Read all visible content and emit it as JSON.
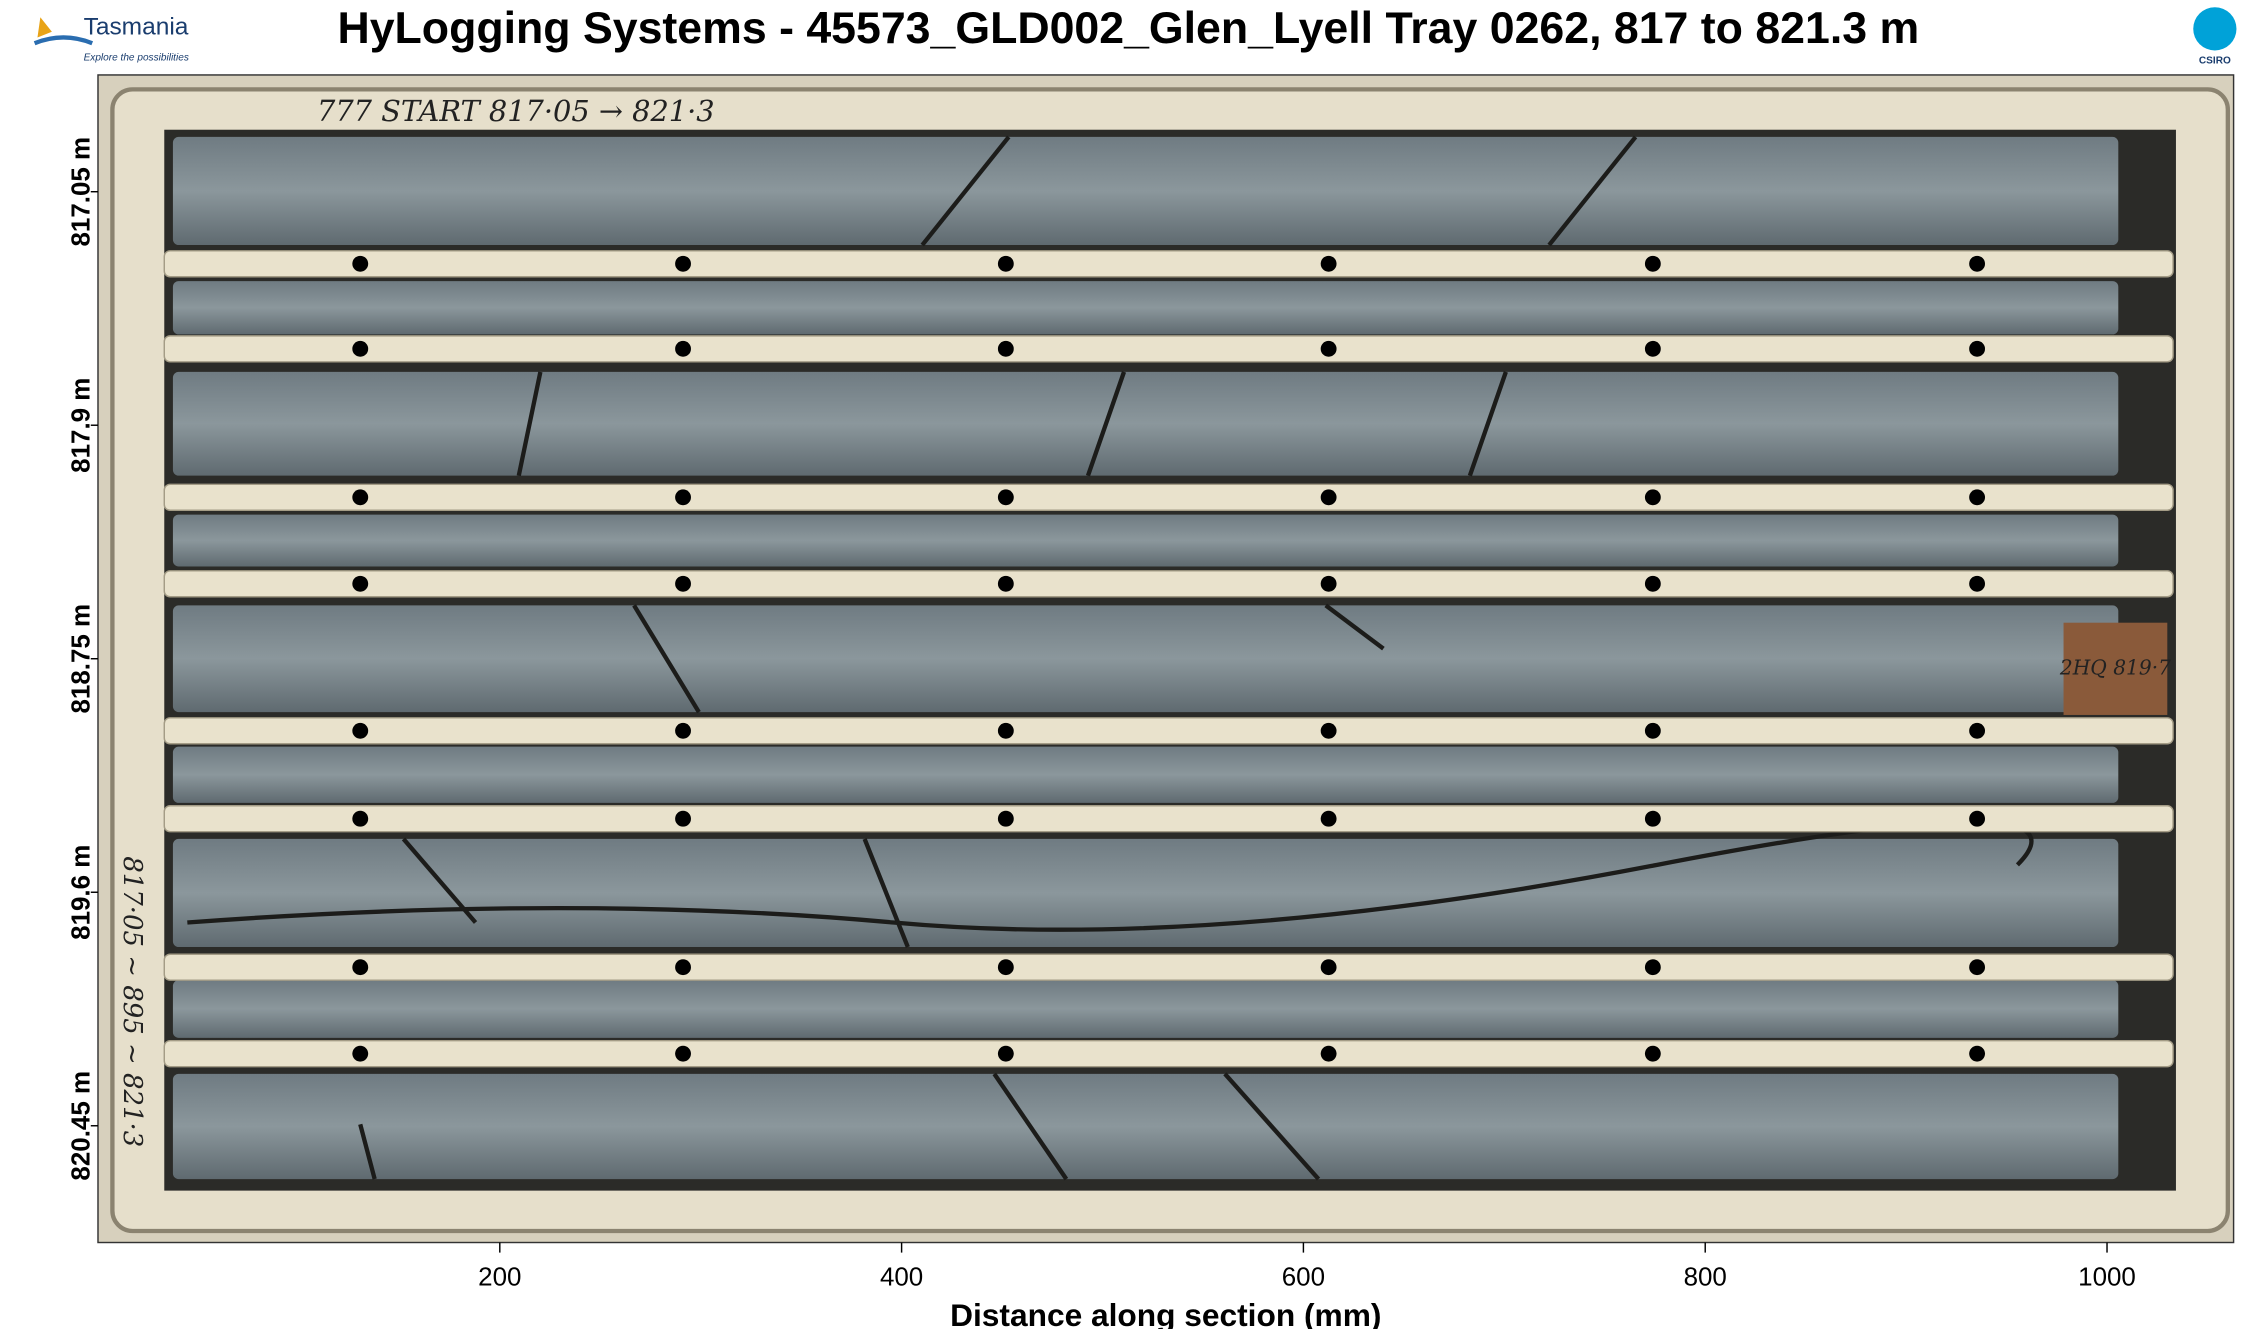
{
  "logos": {
    "tasmania": "Tasmania",
    "tasmania_tagline": "Explore the possibilities",
    "csiro": "CSIRO"
  },
  "chart_data": {
    "type": "image",
    "title": "HyLogging Systems  -  45573_GLD002_Glen_Lyell  Tray 0262,  817 to 821.3 m",
    "xlabel": "Distance along section (mm)",
    "xlim": [
      0,
      1063
    ],
    "xticks": [
      200,
      400,
      600,
      800,
      1000
    ],
    "ylim": [
      816.625,
      820.875
    ],
    "yticks": [
      {
        "value": 817.05,
        "label": "817.05 m"
      },
      {
        "value": 817.9,
        "label": "817.9 m"
      },
      {
        "value": 818.75,
        "label": "818.75 m"
      },
      {
        "value": 819.6,
        "label": "819.6 m"
      },
      {
        "value": 820.45,
        "label": "820.45 m"
      }
    ],
    "annotations": [
      "777 START  817·05 → 821·3",
      "2HQ 819·7",
      "817·05 ~ 895 ~ 821·3"
    ]
  }
}
